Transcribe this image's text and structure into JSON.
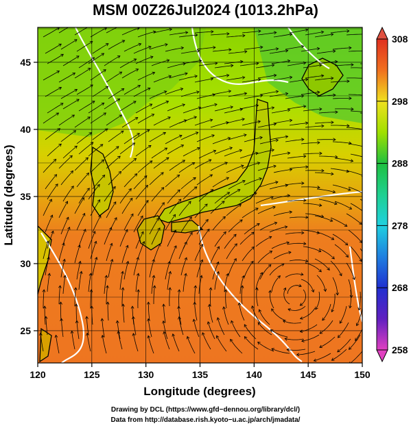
{
  "title": "MSM 00Z26Jul2024 (1013.2hPa)",
  "map": {
    "xlabel": "Longitude (degrees)",
    "ylabel": "Latitude  (degrees)",
    "lon_range": [
      120,
      150
    ],
    "lat_range": [
      22.6,
      47.6
    ],
    "lon_ticks": [
      120,
      125,
      130,
      135,
      140,
      145,
      150
    ],
    "lat_ticks": [
      25,
      30,
      35,
      40,
      45
    ],
    "grid": true,
    "field": "temperature",
    "overlay": "wind streamlines"
  },
  "colorbar": {
    "min": 258,
    "max": 308,
    "tick_labels": [
      "308",
      "298",
      "288",
      "278",
      "268",
      "258"
    ],
    "colors": {
      "magenta": "#e040c0",
      "blue": "#2030d0",
      "cyan": "#20d0e0",
      "green": "#20c040",
      "yellow": "#f0e020",
      "orange": "#f08020",
      "red": "#e03020"
    }
  },
  "credits": {
    "line1": "Drawing by DCL (https://www.gfd−dennou.org/library/dcl/)",
    "line2": "Data from http://database.rish.kyoto−u.ac.jp/arch/jmadata/"
  }
}
